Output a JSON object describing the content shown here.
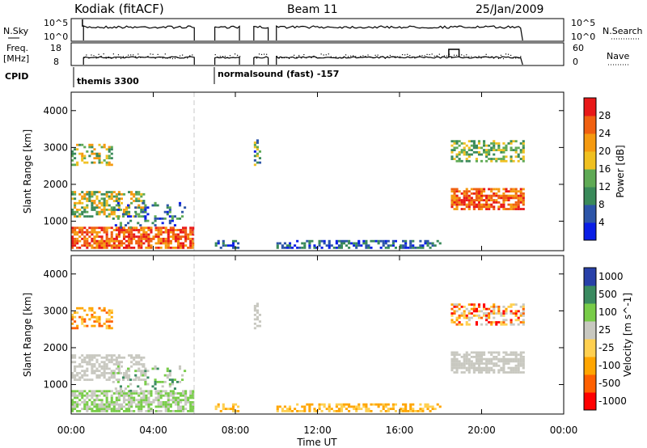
{
  "header": {
    "station": "Kodiak (fitACF)",
    "beam": "Beam 11",
    "date": "25/Jan/2009"
  },
  "colors": {
    "power_scale": [
      "#0a1ee6",
      "#2d55a8",
      "#3a8a5a",
      "#5faa55",
      "#f0c020",
      "#f59a10",
      "#f06010",
      "#e81818"
    ],
    "velocity_scale": [
      "#ff0000",
      "#ff6000",
      "#ffa500",
      "#ffd050",
      "#c8c8c0",
      "#78cc48",
      "#3a8a60",
      "#2840a8"
    ],
    "ground_scatter": "#c8c8c0",
    "axes": "#000000"
  },
  "chart_data": [
    {
      "panel": "nsky-nsearch",
      "type": "line",
      "left_label": "N.Sky",
      "right_label": "N.Search",
      "left_ticks": [
        "10^5",
        "10^0"
      ],
      "right_ticks": [
        "10^5",
        "10^0"
      ],
      "xlim_hours": [
        0,
        24
      ]
    },
    {
      "panel": "freq-nave",
      "type": "line",
      "left_label": "Freq.",
      "left_unit": "[MHz]",
      "right_label": "Nave",
      "left_ticks": [
        18,
        8
      ],
      "right_ticks": [
        60,
        0
      ],
      "xlim_hours": [
        0,
        24
      ]
    },
    {
      "panel": "cpid",
      "label": "CPID",
      "programs": [
        {
          "name": "themis 3300",
          "start_hour": 0.0
        },
        {
          "name": "normalsound (fast) -157",
          "start_hour": 7.0
        }
      ]
    },
    {
      "panel": "power",
      "type": "heatmap",
      "ylabel": "Slant Range [km]",
      "colorbar_label": "Power [dB]",
      "colorbar_ticks": [
        4,
        8,
        12,
        16,
        20,
        24,
        28
      ],
      "ylim": [
        200,
        4500
      ],
      "yticks": [
        1000,
        2000,
        3000,
        4000
      ],
      "xlim_hours": [
        0,
        24
      ],
      "data_gaps_hours": [
        [
          6.0,
          7.0
        ],
        [
          8.2,
          8.9
        ],
        [
          9.6,
          10.0
        ],
        [
          22.0,
          24.0
        ]
      ]
    },
    {
      "panel": "velocity",
      "type": "heatmap",
      "ylabel": "Slant Range [km]",
      "colorbar_label": "Velocity [m s^-1]",
      "colorbar_ticks": [
        "1000",
        "500",
        "100",
        "25",
        "-25",
        "-100",
        "-500",
        "-1000"
      ],
      "ylim": [
        200,
        4500
      ],
      "yticks": [
        1000,
        2000,
        3000,
        4000
      ],
      "xlim_hours": [
        0,
        24
      ]
    }
  ],
  "xaxis": {
    "label": "Time UT",
    "ticks": [
      "00:00",
      "04:00",
      "08:00",
      "12:00",
      "16:00",
      "20:00",
      "00:00"
    ]
  }
}
